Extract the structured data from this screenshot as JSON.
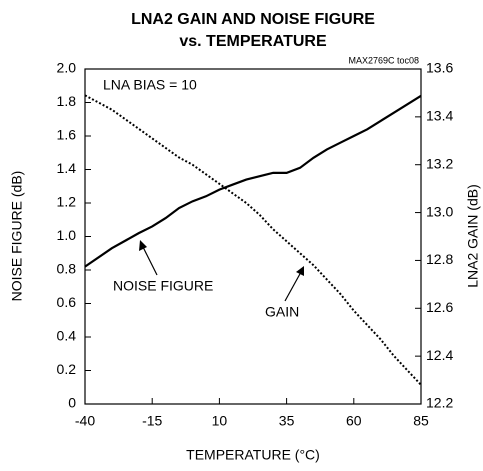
{
  "chart_data": {
    "type": "line",
    "title": "LNA2 GAIN AND NOISE FIGURE",
    "subtitle": "vs. TEMPERATURE",
    "figure_id": "MAX2769C toc08",
    "annotation": "LNA BIAS = 10",
    "x_label": "TEMPERATURE (°C)",
    "y_label": "NOISE FIGURE (dB)",
    "y2_label": "LNA2 GAIN (dB)",
    "x": [
      -40,
      -30,
      -20,
      -15,
      -10,
      -5,
      0,
      5,
      10,
      15,
      20,
      25,
      30,
      35,
      40,
      45,
      50,
      55,
      60,
      65,
      70,
      75,
      80,
      85
    ],
    "series": [
      {
        "name": "NOISE FIGURE",
        "color": "#000000",
        "dash": "solid",
        "values": [
          0.82,
          0.93,
          1.02,
          1.06,
          1.11,
          1.17,
          1.21,
          1.24,
          1.28,
          1.31,
          1.34,
          1.36,
          1.38,
          1.38,
          1.41,
          1.47,
          1.52,
          1.56,
          1.6,
          1.64,
          1.69,
          1.74,
          1.79,
          1.84
        ]
      },
      {
        "name": "GAIN",
        "color": "#000000",
        "dash": "dotted",
        "axis": "y2",
        "values": [
          13.49,
          13.43,
          13.35,
          13.31,
          13.27,
          13.23,
          13.2,
          13.16,
          13.12,
          13.08,
          13.04,
          12.99,
          12.93,
          12.88,
          12.83,
          12.78,
          12.72,
          12.66,
          12.59,
          12.53,
          12.47,
          12.4,
          12.34,
          12.28
        ]
      }
    ],
    "xlim": [
      -40,
      85
    ],
    "xticks": [
      -40,
      -15,
      10,
      35,
      60,
      85
    ],
    "ylim": [
      0,
      2
    ],
    "yticks": [
      0,
      0.2,
      0.4,
      0.6,
      0.8,
      {
        "value": 1,
        "label": "1.0"
      },
      1.2,
      1.4,
      1.6,
      1.8,
      {
        "value": 2,
        "label": "2.0"
      }
    ],
    "y2lim": [
      12.2,
      13.6
    ],
    "y2ticks": [
      12.2,
      12.4,
      12.6,
      12.8,
      {
        "value": 13,
        "label": "13.0"
      },
      13.2,
      13.4,
      13.6
    ],
    "grid": false
  }
}
